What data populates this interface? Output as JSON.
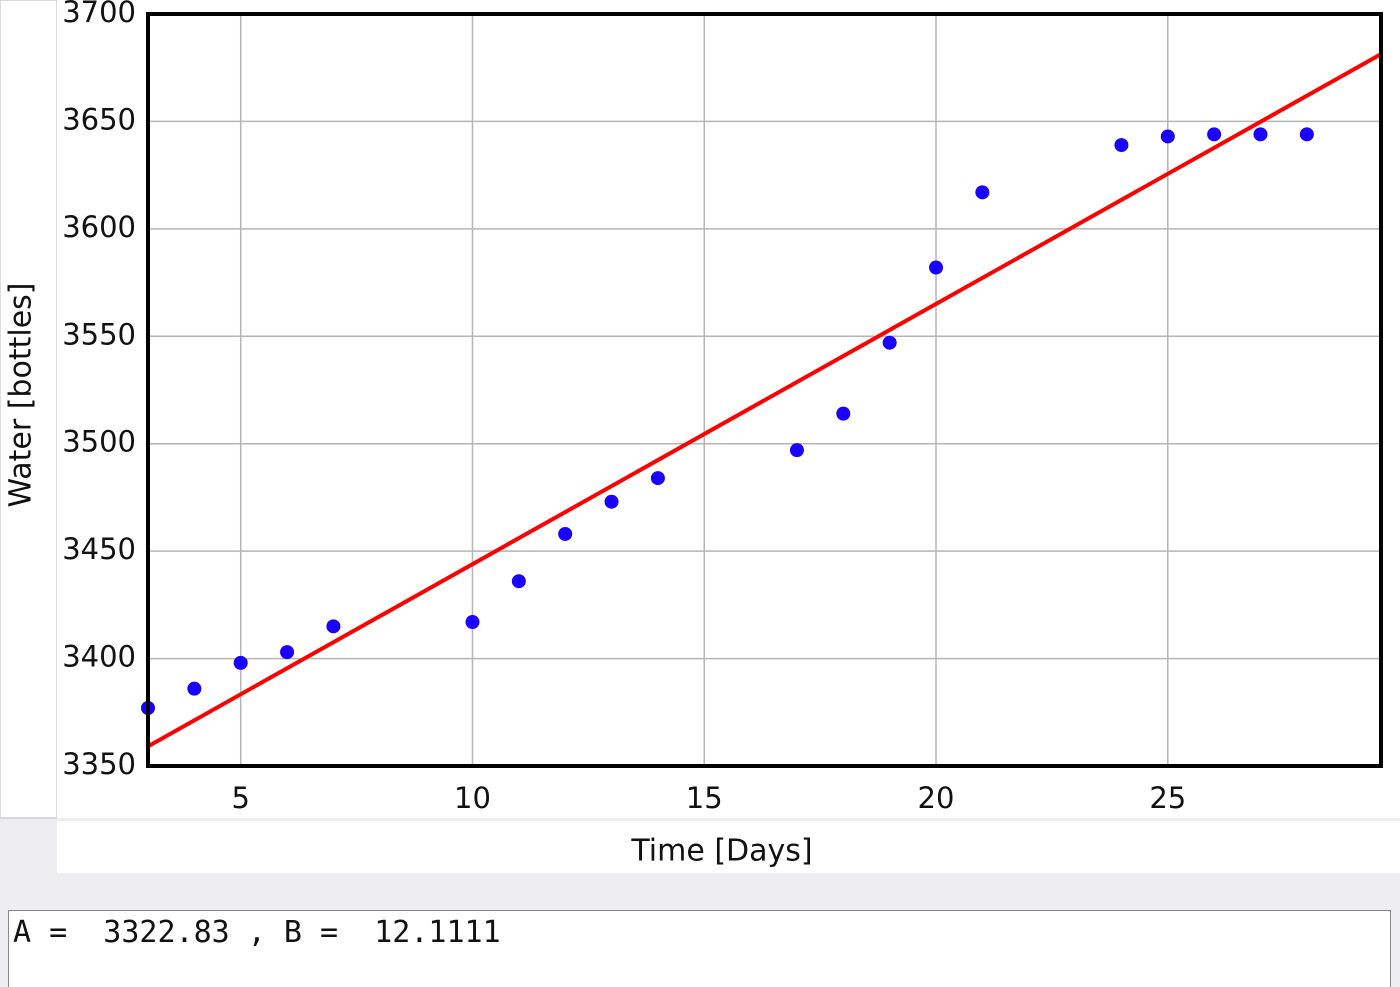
{
  "chart_data": {
    "type": "scatter",
    "xlabel": "Time [Days]",
    "ylabel": "Water [bottles]",
    "xlim": [
      3,
      29.6
    ],
    "ylim": [
      3350,
      3700
    ],
    "xticks": [
      5,
      10,
      15,
      20,
      25
    ],
    "yticks": [
      3350,
      3400,
      3450,
      3500,
      3550,
      3600,
      3650,
      3700
    ],
    "grid": true,
    "series": [
      {
        "type": "scatter",
        "color": "#1a00ff",
        "x": [
          3,
          4,
          5,
          6,
          7,
          10,
          11,
          12,
          13,
          14,
          17,
          18,
          19,
          20,
          21,
          24,
          25,
          26,
          27,
          28
        ],
        "values": [
          3377,
          3386,
          3398,
          3403,
          3415,
          3417,
          3436,
          3458,
          3473,
          3484,
          3497,
          3514,
          3547,
          3582,
          3617,
          3639,
          3643,
          3644,
          3644,
          3644
        ]
      },
      {
        "type": "line",
        "color": "#ff0000",
        "x": [
          3,
          29.6
        ],
        "values": [
          3359.16,
          3681.31
        ]
      }
    ]
  },
  "result_text": "A =  3322.83 , B =  12.1111"
}
